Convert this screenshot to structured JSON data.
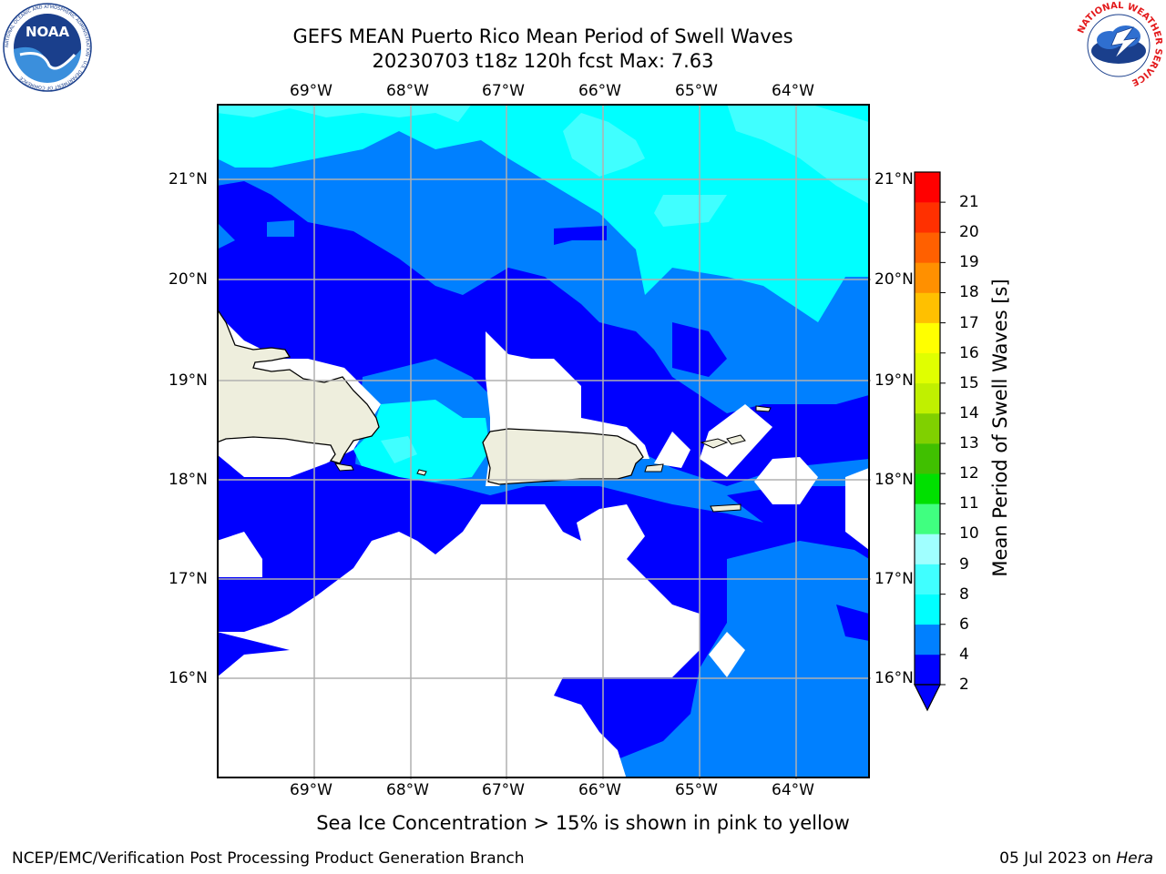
{
  "title": {
    "line1": "GEFS MEAN Puerto Rico Mean Period of Swell Waves",
    "line2": "20230703 t18z 120h fcst   Max: 7.63"
  },
  "logos": {
    "left": "NOAA",
    "left_ring": "NATIONAL OCEANIC AND ATMOSPHERIC ADMINISTRATION · U.S. DEPARTMENT OF COMMERCE",
    "right_ring": "NATIONAL WEATHER SERVICE"
  },
  "map": {
    "lon_labels": [
      "69°W",
      "68°W",
      "67°W",
      "66°W",
      "65°W",
      "64°W"
    ],
    "lat_labels": [
      "21°N",
      "20°N",
      "19°N",
      "18°N",
      "17°N",
      "16°N"
    ],
    "land_color": "#eeeedd",
    "grid_color": "#b0b0b0"
  },
  "colorbar": {
    "label": "Mean Period of Swell Waves [s]",
    "ticks": [
      "2",
      "4",
      "6",
      "8",
      "9",
      "10",
      "11",
      "12",
      "13",
      "14",
      "15",
      "16",
      "17",
      "18",
      "19",
      "20",
      "21"
    ],
    "colors": [
      "#0000ff",
      "#0080ff",
      "#00ffff",
      "#40ffff",
      "#a0ffff",
      "#40ff80",
      "#00e000",
      "#40c000",
      "#80d000",
      "#c0f000",
      "#e0ff00",
      "#ffff00",
      "#ffc000",
      "#ff9000",
      "#ff6000",
      "#ff3000",
      "#ff0000"
    ]
  },
  "caption": "Sea Ice Concentration > 15% is shown in pink to yellow",
  "footer": {
    "left": "NCEP/EMC/Verification Post Processing Product Generation Branch",
    "right_date": "05 Jul 2023 on ",
    "right_host": "Hera"
  }
}
